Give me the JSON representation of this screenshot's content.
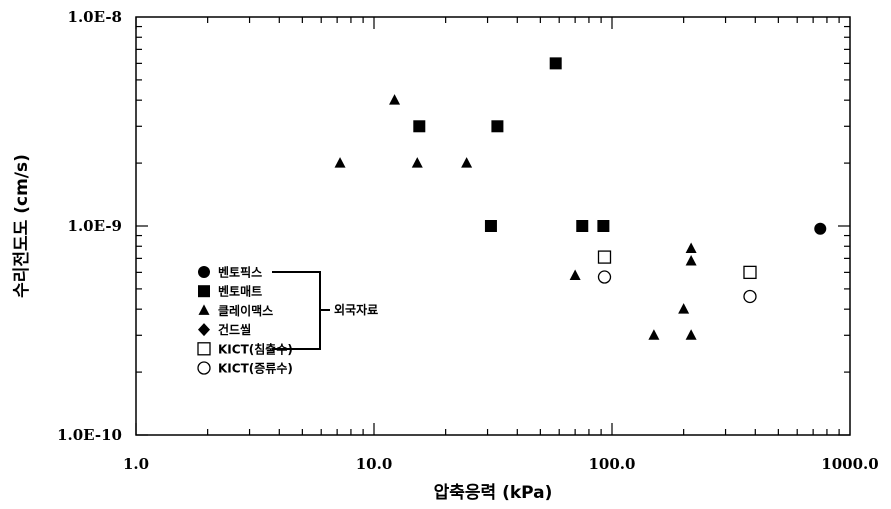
{
  "chart_data": {
    "type": "scatter",
    "xlabel": "압축응력 (kPa)",
    "ylabel": "수리전도도 (cm/s)",
    "x_scale": "log",
    "y_scale": "log",
    "xlim": [
      1,
      1000
    ],
    "ylim": [
      1e-10,
      1e-08
    ],
    "x_tick_labels": [
      {
        "value": 1,
        "label": "1.0"
      },
      {
        "value": 10,
        "label": "10.0"
      },
      {
        "value": 100,
        "label": "100.0"
      },
      {
        "value": 1000,
        "label": "1000.0"
      }
    ],
    "y_tick_labels": [
      {
        "value": 1e-10,
        "label": "1.0E-10"
      },
      {
        "value": 1e-09,
        "label": "1.0E-9"
      },
      {
        "value": 1e-08,
        "label": "1.0E-8"
      }
    ],
    "grid": false,
    "legend_position": "left",
    "legend_group_label": "외국자료",
    "series": [
      {
        "name": "벤토픽스",
        "marker": "filled-circle",
        "color": "#000000",
        "points": [
          {
            "x": 750,
            "y": 9.7e-10
          }
        ]
      },
      {
        "name": "벤토매트",
        "marker": "filled-square",
        "color": "#000000",
        "points": [
          {
            "x": 15.5,
            "y": 3e-09
          },
          {
            "x": 33,
            "y": 3e-09
          },
          {
            "x": 58,
            "y": 6e-09
          },
          {
            "x": 31,
            "y": 1e-09
          },
          {
            "x": 75,
            "y": 1e-09
          },
          {
            "x": 92,
            "y": 1e-09
          }
        ]
      },
      {
        "name": "클레이맥스",
        "marker": "filled-triangle",
        "color": "#000000",
        "points": [
          {
            "x": 7.2,
            "y": 2e-09
          },
          {
            "x": 12.2,
            "y": 4e-09
          },
          {
            "x": 15.2,
            "y": 2e-09
          },
          {
            "x": 24.5,
            "y": 2e-09
          },
          {
            "x": 70,
            "y": 5.8e-10
          },
          {
            "x": 150,
            "y": 3e-10
          },
          {
            "x": 200,
            "y": 4e-10
          },
          {
            "x": 215,
            "y": 7.8e-10
          },
          {
            "x": 215,
            "y": 6.8e-10
          },
          {
            "x": 215,
            "y": 3e-10
          }
        ]
      },
      {
        "name": "건드씰",
        "marker": "filled-diamond",
        "color": "#000000",
        "points": []
      },
      {
        "name": "KICT(침출수)",
        "marker": "open-square",
        "color": "#000000",
        "points": [
          {
            "x": 93,
            "y": 7.1e-10
          },
          {
            "x": 380,
            "y": 6e-10
          }
        ]
      },
      {
        "name": "KICT(증류수)",
        "marker": "open-circle",
        "color": "#000000",
        "points": [
          {
            "x": 93,
            "y": 5.7e-10
          },
          {
            "x": 380,
            "y": 4.6e-10
          }
        ]
      }
    ]
  }
}
